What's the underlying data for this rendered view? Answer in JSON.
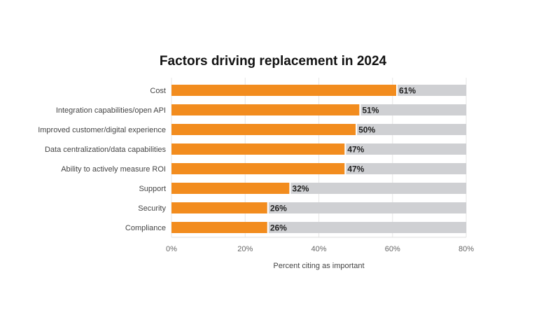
{
  "chart_data": {
    "type": "bar",
    "orientation": "horizontal",
    "title": "Factors driving replacement in 2024",
    "xlabel": "Percent citing as important",
    "ylabel": "",
    "xlim": [
      0,
      80
    ],
    "xticks": [
      "0%",
      "20%",
      "40%",
      "60%",
      "80%"
    ],
    "categories": [
      "Cost",
      "Integration capabilities/open API",
      "Improved customer/digital experience",
      "Data centralization/data capabilities",
      "Ability to actively measure ROI",
      "Support",
      "Security",
      "Compliance"
    ],
    "values": [
      61,
      51,
      50,
      47,
      47,
      32,
      26,
      26
    ],
    "data_labels": [
      "61%",
      "51%",
      "50%",
      "47%",
      "47%",
      "32%",
      "26%",
      "26%"
    ],
    "grid": true,
    "colors": {
      "bar": "#f28c1e",
      "background_bar": "#cfd0d3",
      "grid": "#e6e6e6"
    }
  }
}
